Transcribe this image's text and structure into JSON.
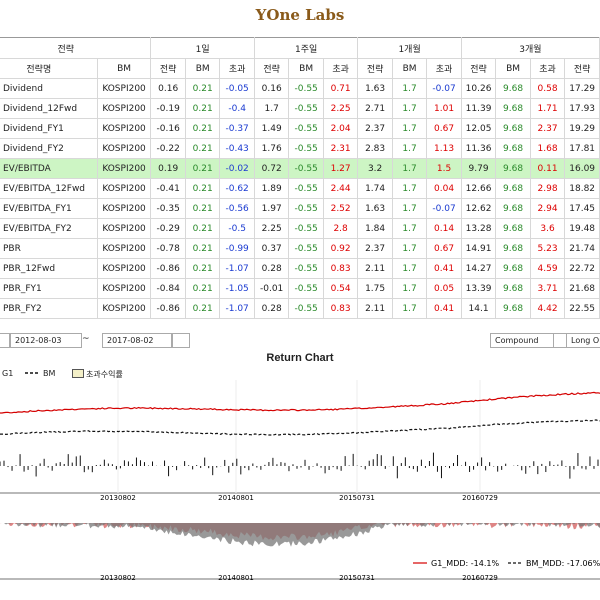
{
  "app_title": "YOne Labs",
  "grid": {
    "group_headers": [
      "전략",
      "1일",
      "1주일",
      "1개월",
      "3개월"
    ],
    "sub_headers": [
      "전략명",
      "BM",
      "전략",
      "BM",
      "초과",
      "전략",
      "BM",
      "초과",
      "전략",
      "BM",
      "초과",
      "전략",
      "BM",
      "초과",
      "전략"
    ],
    "rows": [
      {
        "name": "Dividend",
        "bm": "KOSPI200",
        "v": [
          "0.16",
          "0.21",
          "-0.05",
          "0.16",
          "-0.55",
          "0.71",
          "1.63",
          "1.7",
          "-0.07",
          "10.26",
          "9.68",
          "0.58",
          "17.29"
        ]
      },
      {
        "name": "Dividend_12Fwd",
        "bm": "KOSPI200",
        "v": [
          "-0.19",
          "0.21",
          "-0.4",
          "1.7",
          "-0.55",
          "2.25",
          "2.71",
          "1.7",
          "1.01",
          "11.39",
          "9.68",
          "1.71",
          "17.93"
        ]
      },
      {
        "name": "Dividend_FY1",
        "bm": "KOSPI200",
        "v": [
          "-0.16",
          "0.21",
          "-0.37",
          "1.49",
          "-0.55",
          "2.04",
          "2.37",
          "1.7",
          "0.67",
          "12.05",
          "9.68",
          "2.37",
          "19.29"
        ]
      },
      {
        "name": "Dividend_FY2",
        "bm": "KOSPI200",
        "v": [
          "-0.22",
          "0.21",
          "-0.43",
          "1.76",
          "-0.55",
          "2.31",
          "2.83",
          "1.7",
          "1.13",
          "11.36",
          "9.68",
          "1.68",
          "17.81"
        ]
      },
      {
        "name": "EV/EBITDA",
        "bm": "KOSPI200",
        "v": [
          "0.19",
          "0.21",
          "-0.02",
          "0.72",
          "-0.55",
          "1.27",
          "3.2",
          "1.7",
          "1.5",
          "9.79",
          "9.68",
          "0.11",
          "16.09"
        ],
        "selected": true
      },
      {
        "name": "EV/EBITDA_12Fwd",
        "bm": "KOSPI200",
        "v": [
          "-0.41",
          "0.21",
          "-0.62",
          "1.89",
          "-0.55",
          "2.44",
          "1.74",
          "1.7",
          "0.04",
          "12.66",
          "9.68",
          "2.98",
          "18.82"
        ]
      },
      {
        "name": "EV/EBITDA_FY1",
        "bm": "KOSPI200",
        "v": [
          "-0.35",
          "0.21",
          "-0.56",
          "1.97",
          "-0.55",
          "2.52",
          "1.63",
          "1.7",
          "-0.07",
          "12.62",
          "9.68",
          "2.94",
          "17.45"
        ]
      },
      {
        "name": "EV/EBITDA_FY2",
        "bm": "KOSPI200",
        "v": [
          "-0.29",
          "0.21",
          "-0.5",
          "2.25",
          "-0.55",
          "2.8",
          "1.84",
          "1.7",
          "0.14",
          "13.28",
          "9.68",
          "3.6",
          "19.48"
        ]
      },
      {
        "name": "PBR",
        "bm": "KOSPI200",
        "v": [
          "-0.78",
          "0.21",
          "-0.99",
          "0.37",
          "-0.55",
          "0.92",
          "2.37",
          "1.7",
          "0.67",
          "14.91",
          "9.68",
          "5.23",
          "21.74"
        ]
      },
      {
        "name": "PBR_12Fwd",
        "bm": "KOSPI200",
        "v": [
          "-0.86",
          "0.21",
          "-1.07",
          "0.28",
          "-0.55",
          "0.83",
          "2.11",
          "1.7",
          "0.41",
          "14.27",
          "9.68",
          "4.59",
          "22.72"
        ]
      },
      {
        "name": "PBR_FY1",
        "bm": "KOSPI200",
        "v": [
          "-0.84",
          "0.21",
          "-1.05",
          "-0.01",
          "-0.55",
          "0.54",
          "1.75",
          "1.7",
          "0.05",
          "13.39",
          "9.68",
          "3.71",
          "21.68"
        ]
      },
      {
        "name": "PBR_FY2",
        "bm": "KOSPI200",
        "v": [
          "-0.86",
          "0.21",
          "-1.07",
          "0.28",
          "-0.55",
          "0.83",
          "2.11",
          "1.7",
          "0.41",
          "14.1",
          "9.68",
          "4.42",
          "22.55"
        ]
      }
    ]
  },
  "controls": {
    "start_date": "2012-08-03",
    "separator": "~",
    "end_date": "2017-08-02",
    "mode": "Compound",
    "position": "Long On"
  },
  "chart": {
    "title": "Return Chart",
    "legend": {
      "strategy": "G1",
      "bm": "BM",
      "excess": "초과수익률"
    },
    "x_ticks": [
      "20130802",
      "20140801",
      "20150731",
      "20160729"
    ],
    "mdd_legend": {
      "strategy": "G1_MDD: -14.1%",
      "bm": "BM_MDD: -17.06%"
    },
    "colors": {
      "strategy": "#d40000",
      "bm": "#111111",
      "excess_fill": "#f4f0c8"
    }
  }
}
